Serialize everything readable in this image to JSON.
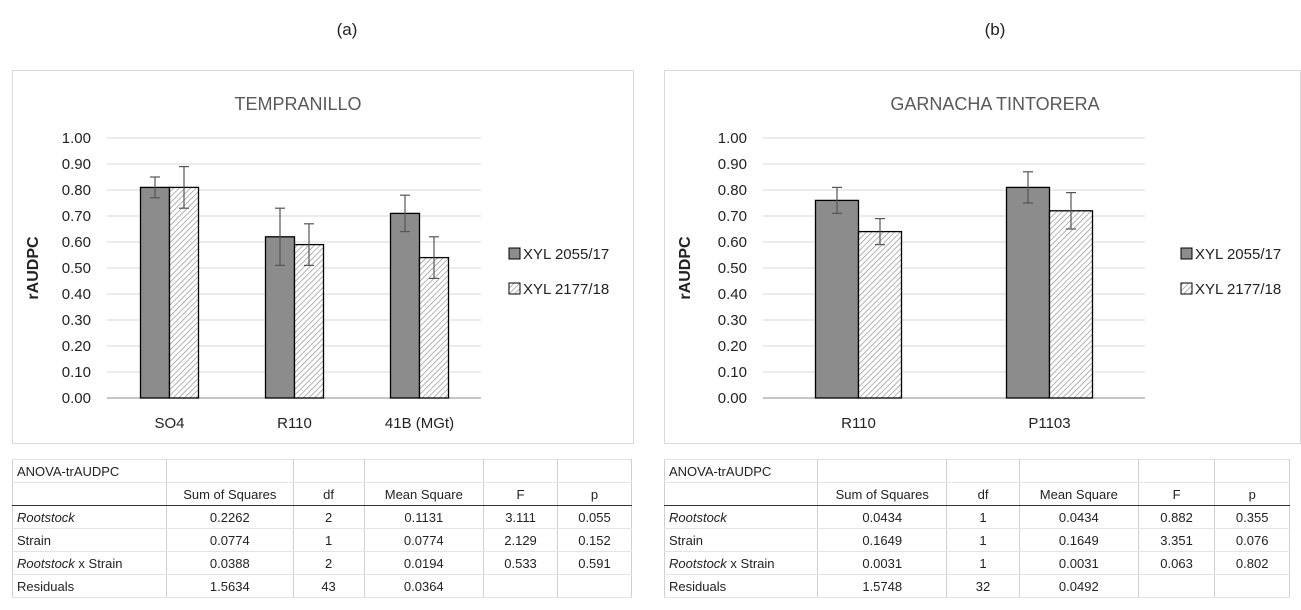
{
  "panels": [
    {
      "label": "(a)",
      "chart_data": {
        "type": "bar",
        "title": "TEMPRANILLO",
        "xlabel": "",
        "ylabel": "rAUDPC",
        "ylim": [
          0,
          1.0
        ],
        "yticks": [
          "1.00",
          "0.90",
          "0.80",
          "0.70",
          "0.60",
          "0.50",
          "0.40",
          "0.30",
          "0.20",
          "0.10",
          "0.00"
        ],
        "grid": true,
        "legend_position": "right",
        "categories": [
          "SO4",
          "R110",
          "41B (MGt)"
        ],
        "series": [
          {
            "name": "XYL 2055/17",
            "color": "#8c8c8c",
            "pattern": "solid",
            "values": [
              0.81,
              0.62,
              0.71
            ],
            "errors": [
              0.04,
              0.11,
              0.07
            ]
          },
          {
            "name": "XYL 2177/18",
            "color": "#ffffff",
            "pattern": "hatched",
            "values": [
              0.81,
              0.59,
              0.54
            ],
            "errors": [
              0.08,
              0.08,
              0.08
            ]
          }
        ]
      },
      "table": {
        "title": "ANOVA-trAUDPC",
        "headers": [
          "Sum of Squares",
          "df",
          "Mean Square",
          "F",
          "p"
        ],
        "rows": [
          {
            "label": "Rootstock",
            "label_suffix": "",
            "italic": true,
            "cells": [
              "0.2262",
              "2",
              "0.1131",
              "3.111",
              "0.055"
            ]
          },
          {
            "label": "Strain",
            "label_suffix": "",
            "italic": false,
            "cells": [
              "0.0774",
              "1",
              "0.0774",
              "2.129",
              "0.152"
            ]
          },
          {
            "label": "Rootstock",
            "label_suffix": " x Strain",
            "italic": true,
            "cells": [
              "0.0388",
              "2",
              "0.0194",
              "0.533",
              "0.591"
            ]
          },
          {
            "label": "Residuals",
            "label_suffix": "",
            "italic": false,
            "cells": [
              "1.5634",
              "43",
              "0.0364",
              "",
              ""
            ]
          }
        ]
      }
    },
    {
      "label": "(b)",
      "chart_data": {
        "type": "bar",
        "title": "GARNACHA TINTORERA",
        "xlabel": "",
        "ylabel": "rAUDPC",
        "ylim": [
          0,
          1.0
        ],
        "yticks": [
          "1.00",
          "0.90",
          "0.80",
          "0.70",
          "0.60",
          "0.50",
          "0.40",
          "0.30",
          "0.20",
          "0.10",
          "0.00"
        ],
        "grid": true,
        "legend_position": "right",
        "categories": [
          "R110",
          "P1103"
        ],
        "series": [
          {
            "name": "XYL 2055/17",
            "color": "#8c8c8c",
            "pattern": "solid",
            "values": [
              0.76,
              0.81
            ],
            "errors": [
              0.05,
              0.06
            ]
          },
          {
            "name": "XYL 2177/18",
            "color": "#ffffff",
            "pattern": "hatched",
            "values": [
              0.64,
              0.72
            ],
            "errors": [
              0.05,
              0.07
            ]
          }
        ]
      },
      "table": {
        "title": "ANOVA-trAUDPC",
        "headers": [
          "Sum of Squares",
          "df",
          "Mean Square",
          "F",
          "p"
        ],
        "rows": [
          {
            "label": "Rootstock",
            "label_suffix": "",
            "italic": true,
            "cells": [
              "0.0434",
              "1",
              "0.0434",
              "0.882",
              "0.355"
            ]
          },
          {
            "label": "Strain",
            "label_suffix": "",
            "italic": false,
            "cells": [
              "0.1649",
              "1",
              "0.1649",
              "3.351",
              "0.076"
            ]
          },
          {
            "label": "Rootstock",
            "label_suffix": " x Strain",
            "italic": true,
            "cells": [
              "0.0031",
              "1",
              "0.0031",
              "0.063",
              "0.802"
            ]
          },
          {
            "label": "Residuals",
            "label_suffix": "",
            "italic": false,
            "cells": [
              "1.5748",
              "32",
              "0.0492",
              "",
              ""
            ]
          }
        ]
      }
    }
  ]
}
